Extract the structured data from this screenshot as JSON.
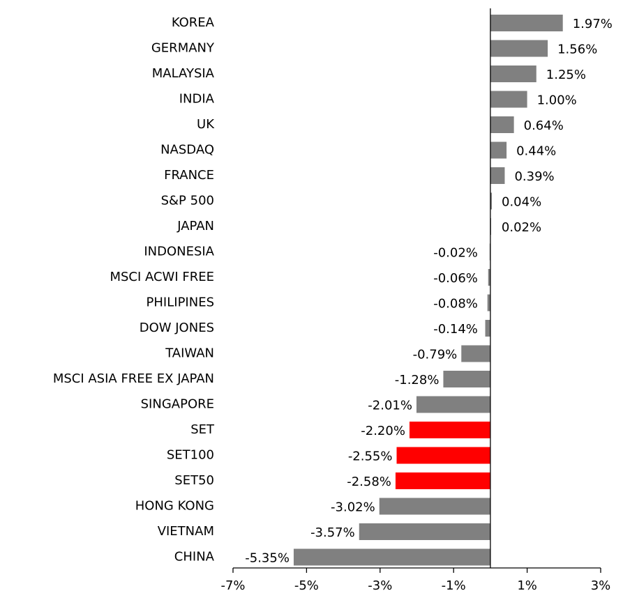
{
  "chart_data": {
    "type": "bar",
    "orientation": "horizontal",
    "categories": [
      "KOREA",
      "GERMANY",
      "MALAYSIA",
      "INDIA",
      "UK",
      "NASDAQ",
      "FRANCE",
      "S&P 500",
      "JAPAN",
      "INDONESIA",
      "MSCI ACWI FREE",
      "PHILIPINES",
      "DOW JONES",
      "TAIWAN",
      "MSCI ASIA FREE  EX JAPAN",
      "SINGAPORE",
      "SET",
      "SET100",
      "SET50",
      "HONG KONG",
      "VIETNAM",
      "CHINA"
    ],
    "values": [
      1.97,
      1.56,
      1.25,
      1.0,
      0.64,
      0.44,
      0.39,
      0.04,
      0.02,
      -0.02,
      -0.06,
      -0.08,
      -0.14,
      -0.79,
      -1.28,
      -2.01,
      -2.2,
      -2.55,
      -2.58,
      -3.02,
      -3.57,
      -5.35
    ],
    "value_labels": [
      "1.97%",
      "1.56%",
      "1.25%",
      "1.00%",
      "0.64%",
      "0.44%",
      "0.39%",
      "0.04%",
      "0.02%",
      "-0.02%",
      "-0.06%",
      "-0.08%",
      "-0.14%",
      "-0.79%",
      "-1.28%",
      "-2.01%",
      "-2.20%",
      "-2.55%",
      "-2.58%",
      "-3.02%",
      "-3.57%",
      "-5.35%"
    ],
    "colors": [
      "#808080",
      "#808080",
      "#808080",
      "#808080",
      "#808080",
      "#808080",
      "#808080",
      "#808080",
      "#808080",
      "#808080",
      "#808080",
      "#808080",
      "#808080",
      "#808080",
      "#808080",
      "#808080",
      "#ff0000",
      "#ff0000",
      "#ff0000",
      "#808080",
      "#808080",
      "#808080"
    ],
    "xlim": [
      -7,
      3
    ],
    "xticks": [
      {
        "value": -7,
        "label": "-7%"
      },
      {
        "value": -5,
        "label": "-5%"
      },
      {
        "value": -3,
        "label": "-3%"
      },
      {
        "value": -1,
        "label": "-1%"
      },
      {
        "value": 1,
        "label": "1%"
      },
      {
        "value": 3,
        "label": "3%"
      }
    ]
  }
}
